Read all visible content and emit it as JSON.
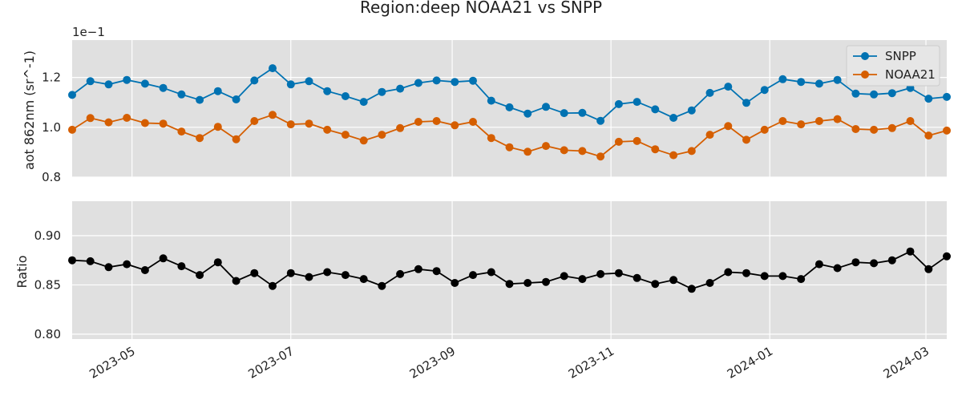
{
  "title": "Region:deep NOAA21 vs SNPP",
  "chart_data": [
    {
      "type": "line",
      "ylabel": "aot 862nm (sr^-1)",
      "offset_label": "1e−1",
      "ylim": [
        0.8,
        1.35
      ],
      "yticks": [
        0.8,
        1.0,
        1.2
      ],
      "ytick_labels": [
        "0.8",
        "1.0",
        "1.2"
      ],
      "grid": true,
      "legend": "top-right",
      "series": [
        {
          "name": "SNPP",
          "color": "#0072b2",
          "values": [
            1.13,
            1.185,
            1.172,
            1.19,
            1.175,
            1.158,
            1.132,
            1.11,
            1.145,
            1.112,
            1.188,
            1.237,
            1.172,
            1.185,
            1.145,
            1.125,
            1.102,
            1.142,
            1.155,
            1.178,
            1.188,
            1.182,
            1.187,
            1.107,
            1.08,
            1.055,
            1.082,
            1.057,
            1.058,
            1.026,
            1.093,
            1.102,
            1.072,
            1.038,
            1.068,
            1.138,
            1.163,
            1.098,
            1.15,
            1.193,
            1.182,
            1.175,
            1.19,
            1.135,
            1.132,
            1.137,
            1.158,
            1.115,
            1.122
          ]
        },
        {
          "name": "NOAA21",
          "color": "#d55e00",
          "values": [
            0.99,
            1.037,
            1.02,
            1.038,
            1.017,
            1.015,
            0.983,
            0.957,
            1.002,
            0.952,
            1.025,
            1.05,
            1.012,
            1.015,
            0.99,
            0.97,
            0.947,
            0.97,
            0.997,
            1.022,
            1.025,
            1.008,
            1.022,
            0.957,
            0.92,
            0.902,
            0.925,
            0.908,
            0.905,
            0.883,
            0.942,
            0.945,
            0.912,
            0.888,
            0.905,
            0.97,
            1.005,
            0.95,
            0.99,
            1.025,
            1.012,
            1.025,
            1.033,
            0.993,
            0.99,
            0.997,
            1.025,
            0.967,
            0.987
          ]
        }
      ]
    },
    {
      "type": "line",
      "ylabel": "Ratio",
      "ylim": [
        0.795,
        0.935
      ],
      "yticks": [
        0.8,
        0.85,
        0.9
      ],
      "ytick_labels": [
        "0.80",
        "0.85",
        "0.90"
      ],
      "grid": true,
      "series": [
        {
          "name": "",
          "color": "#000000",
          "values": [
            0.875,
            0.874,
            0.868,
            0.871,
            0.865,
            0.877,
            0.869,
            0.86,
            0.873,
            0.854,
            0.862,
            0.849,
            0.862,
            0.858,
            0.863,
            0.86,
            0.856,
            0.849,
            0.861,
            0.866,
            0.864,
            0.852,
            0.86,
            0.863,
            0.851,
            0.852,
            0.853,
            0.859,
            0.856,
            0.861,
            0.862,
            0.857,
            0.851,
            0.855,
            0.846,
            0.852,
            0.863,
            0.862,
            0.859,
            0.859,
            0.856,
            0.871,
            0.867,
            0.873,
            0.872,
            0.875,
            0.884,
            0.866,
            0.879
          ]
        }
      ]
    }
  ],
  "x": [
    "2023-04-08",
    "2023-04-15",
    "2023-04-22",
    "2023-04-29",
    "2023-05-06",
    "2023-05-13",
    "2023-05-20",
    "2023-05-27",
    "2023-06-03",
    "2023-06-10",
    "2023-06-17",
    "2023-06-24",
    "2023-07-01",
    "2023-07-08",
    "2023-07-15",
    "2023-07-22",
    "2023-07-29",
    "2023-08-05",
    "2023-08-12",
    "2023-08-19",
    "2023-08-26",
    "2023-09-02",
    "2023-09-09",
    "2023-09-16",
    "2023-09-23",
    "2023-09-30",
    "2023-10-07",
    "2023-10-14",
    "2023-10-21",
    "2023-10-28",
    "2023-11-04",
    "2023-11-11",
    "2023-11-18",
    "2023-11-25",
    "2023-12-02",
    "2023-12-09",
    "2023-12-16",
    "2023-12-23",
    "2023-12-30",
    "2024-01-06",
    "2024-01-13",
    "2024-01-20",
    "2024-01-27",
    "2024-02-03",
    "2024-02-10",
    "2024-02-17",
    "2024-02-24",
    "2024-03-02",
    "2024-03-09"
  ],
  "xlim": [
    "2023-04-08",
    "2024-03-09"
  ],
  "xtick_labels": [
    "2023-05",
    "2023-07",
    "2023-09",
    "2023-11",
    "2024-01",
    "2024-03"
  ],
  "xtick_dates": [
    "2023-05-01",
    "2023-07-01",
    "2023-09-01",
    "2023-11-01",
    "2024-01-01",
    "2024-03-01"
  ]
}
